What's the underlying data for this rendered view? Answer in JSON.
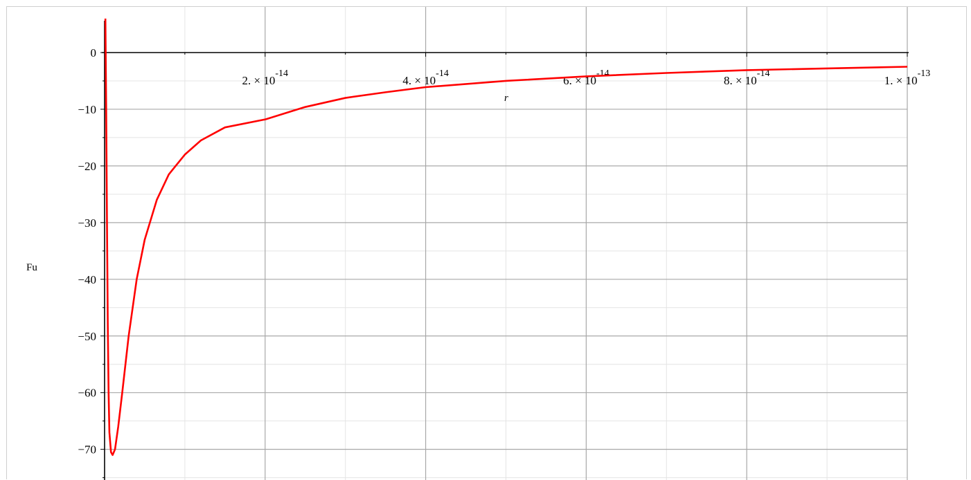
{
  "chart_data": {
    "type": "line",
    "title": "",
    "xlabel": "r",
    "ylabel": "Fu",
    "xlim": [
      -1e-15,
      1e-13
    ],
    "ylim": [
      -75,
      5
    ],
    "grid": true,
    "line_color": "#ff0000",
    "x_ticks": [
      {
        "value": 2e-14,
        "mantissa": "2.",
        "times": "×",
        "base": "10",
        "exponent": "-14"
      },
      {
        "value": 4e-14,
        "mantissa": "4.",
        "times": "×",
        "base": "10",
        "exponent": "-14"
      },
      {
        "value": 6e-14,
        "mantissa": "6.",
        "times": "×",
        "base": "10",
        "exponent": "-14"
      },
      {
        "value": 8e-14,
        "mantissa": "8.",
        "times": "×",
        "base": "10",
        "exponent": "-14"
      },
      {
        "value": 1e-13,
        "mantissa": "1.",
        "times": "×",
        "base": "10",
        "exponent": "-13"
      }
    ],
    "y_ticks": [
      {
        "value": 0,
        "label": "0"
      },
      {
        "value": -10,
        "label": "−10"
      },
      {
        "value": -20,
        "label": "−20"
      },
      {
        "value": -30,
        "label": "−30"
      },
      {
        "value": -40,
        "label": "−40"
      },
      {
        "value": -50,
        "label": "−50"
      },
      {
        "value": -60,
        "label": "−60"
      },
      {
        "value": -70,
        "label": "−70"
      }
    ],
    "series": [
      {
        "points": [
          [
            1e-16,
            6
          ],
          [
            2e-16,
            -10
          ],
          [
            3e-16,
            -30
          ],
          [
            4e-16,
            -48
          ],
          [
            5e-16,
            -60
          ],
          [
            6e-16,
            -67
          ],
          [
            8e-16,
            -70.5
          ],
          [
            1e-15,
            -71
          ],
          [
            1.3e-15,
            -70
          ],
          [
            1.7e-15,
            -66
          ],
          [
            2.2e-15,
            -60
          ],
          [
            3e-15,
            -50
          ],
          [
            4e-15,
            -40
          ],
          [
            5e-15,
            -33
          ],
          [
            6.5e-15,
            -26
          ],
          [
            8e-15,
            -21.5
          ],
          [
            1e-14,
            -18
          ],
          [
            1.2e-14,
            -15.5
          ],
          [
            1.5e-14,
            -13.2
          ],
          [
            2e-14,
            -11.8
          ],
          [
            2.5e-14,
            -9.6
          ],
          [
            3e-14,
            -8.0
          ],
          [
            3.5e-14,
            -7.0
          ],
          [
            4e-14,
            -6.1
          ],
          [
            5e-14,
            -5.0
          ],
          [
            6e-14,
            -4.2
          ],
          [
            7e-14,
            -3.6
          ],
          [
            8e-14,
            -3.1
          ],
          [
            9e-14,
            -2.8
          ],
          [
            1e-13,
            -2.5
          ]
        ]
      }
    ]
  }
}
